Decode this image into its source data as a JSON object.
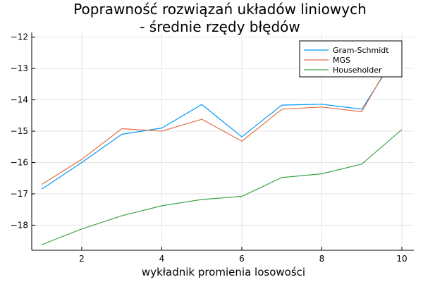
{
  "chart_data": {
    "type": "line",
    "title_line1": "Poprawność rozwiązań układów liniowych",
    "title_line2": "-  średnie rzędy błędów",
    "xlabel": "wykładnik promienia losowości",
    "ylabel": "",
    "xlim": [
      0.75,
      10.3
    ],
    "ylim": [
      -18.8,
      -11.85
    ],
    "xticks": [
      2,
      4,
      6,
      8,
      10
    ],
    "yticks": [
      -18,
      -17,
      -16,
      -15,
      -14,
      -13,
      -12
    ],
    "grid": true,
    "legend_position": "top-right",
    "x": [
      1,
      2,
      3,
      4,
      5,
      6,
      7,
      8,
      9,
      10
    ],
    "series": [
      {
        "name": "Gram-Schmidt",
        "color": "#009AFA",
        "values": [
          -16.85,
          -16.0,
          -15.1,
          -14.9,
          -14.15,
          -15.18,
          -14.17,
          -14.14,
          -14.3,
          -12.3
        ]
      },
      {
        "name": "MGS",
        "color": "#E36F47",
        "values": [
          -16.7,
          -15.9,
          -14.92,
          -15.0,
          -14.62,
          -15.32,
          -14.3,
          -14.23,
          -14.38,
          -12.15
        ]
      },
      {
        "name": "Householder",
        "color": "#3EA44E",
        "values": [
          -18.62,
          -18.12,
          -17.7,
          -17.38,
          -17.18,
          -17.08,
          -16.48,
          -16.36,
          -16.05,
          -14.95
        ]
      }
    ]
  }
}
